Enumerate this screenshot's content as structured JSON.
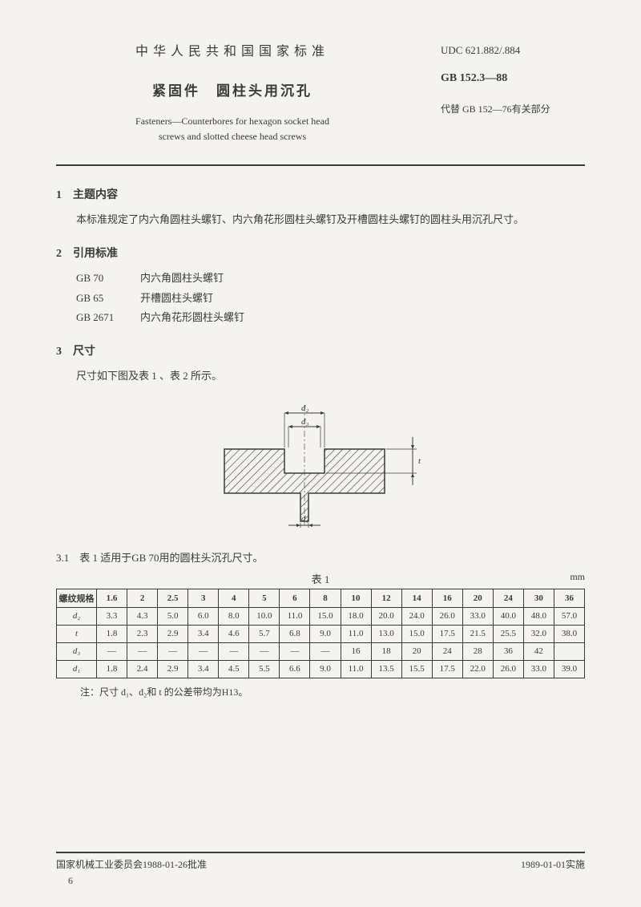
{
  "header": {
    "country_title": "中华人民共和国国家标准",
    "main_title": "紧固件　圆柱头用沉孔",
    "en_title_1": "Fasteners—Counterbores for hexagon socket head",
    "en_title_2": "screws and slotted cheese head screws",
    "udc": "UDC 621.882/.884",
    "gb": "GB 152.3—88",
    "replace": "代替 GB 152—76有关部分"
  },
  "section1": {
    "title": "1　主题内容",
    "body": "本标准规定了内六角圆柱头螺钉、内六角花形圆柱头螺钉及开槽圆柱头螺钉的圆柱头用沉孔尺寸。"
  },
  "section2": {
    "title": "2　引用标准",
    "refs": [
      {
        "code": "GB 70",
        "name": "内六角圆柱头螺钉"
      },
      {
        "code": "GB 65",
        "name": "开槽圆柱头螺钉"
      },
      {
        "code": "GB 2671",
        "name": "内六角花形圆柱头螺钉"
      }
    ]
  },
  "section3": {
    "title": "3　尺寸",
    "body": "尺寸如下图及表 1 、表 2 所示。"
  },
  "diagram": {
    "labels": {
      "d1": "d₁",
      "d2": "d₂",
      "d3": "d₃",
      "t": "t"
    },
    "stroke": "#3a3a3a",
    "hatch_spacing": 7,
    "line_width": 1.2
  },
  "table": {
    "intro": "3.1　表 1 适用于GB 70用的圆柱头沉孔尺寸。",
    "title": "表 1",
    "unit": "mm",
    "header_first": "螺纹规格",
    "specs": [
      "1.6",
      "2",
      "2.5",
      "3",
      "4",
      "5",
      "6",
      "8",
      "10",
      "12",
      "14",
      "16",
      "20",
      "24",
      "30",
      "36"
    ],
    "rows": [
      {
        "label": "d₂",
        "values": [
          "3.3",
          "4.3",
          "5.0",
          "6.0",
          "8.0",
          "10.0",
          "11.0",
          "15.0",
          "18.0",
          "20.0",
          "24.0",
          "26.0",
          "33.0",
          "40.0",
          "48.0",
          "57.0"
        ]
      },
      {
        "label": "t",
        "values": [
          "1.8",
          "2.3",
          "2.9",
          "3.4",
          "4.6",
          "5.7",
          "6.8",
          "9.0",
          "11.0",
          "13.0",
          "15.0",
          "17.5",
          "21.5",
          "25.5",
          "32.0",
          "38.0"
        ]
      },
      {
        "label": "d₃",
        "values": [
          "—",
          "—",
          "—",
          "—",
          "—",
          "—",
          "—",
          "—",
          "16",
          "18",
          "20",
          "24",
          "28",
          "36",
          "42",
          ""
        ]
      },
      {
        "label": "d₁",
        "values": [
          "1.8",
          "2.4",
          "2.9",
          "3.4",
          "4.5",
          "5.5",
          "6.6",
          "9.0",
          "11.0",
          "13.5",
          "15.5",
          "17.5",
          "22.0",
          "26.0",
          "33.0",
          "39.0"
        ]
      }
    ],
    "note": "注：尺寸 d₁、d₂和 t 的公差带均为H13。"
  },
  "footer": {
    "left": "国家机械工业委员会1988-01-26批准",
    "right": "1989-01-01实施",
    "page": "6"
  }
}
